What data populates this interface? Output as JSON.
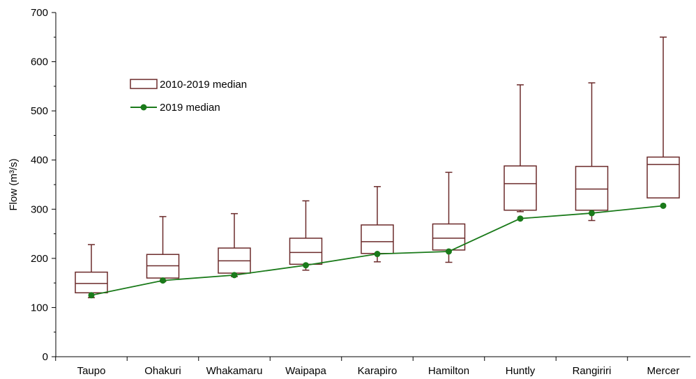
{
  "chart_data": {
    "type": "box",
    "ylabel": "Flow (m³/s)",
    "ylim": [
      0,
      700
    ],
    "yticks": [
      0,
      100,
      200,
      300,
      400,
      500,
      600,
      700
    ],
    "categories": [
      "Taupo",
      "Ohakuri",
      "Whakamaru",
      "Waipapa",
      "Karapiro",
      "Hamilton",
      "Huntly",
      "Rangiriri",
      "Mercer"
    ],
    "boxes": {
      "name": "2010-2019 median",
      "color": "#6b2a2a",
      "whisker_low": [
        120,
        153,
        163,
        176,
        193,
        192,
        295,
        277,
        325
      ],
      "q1": [
        130,
        160,
        170,
        188,
        210,
        217,
        298,
        298,
        323
      ],
      "median": [
        149,
        185,
        195,
        212,
        234,
        241,
        352,
        341,
        391
      ],
      "q3": [
        172,
        208,
        221,
        241,
        268,
        270,
        388,
        387,
        406
      ],
      "whisker_high": [
        228,
        285,
        291,
        317,
        346,
        375,
        553,
        557,
        650
      ]
    },
    "line": {
      "name": "2019 median",
      "color": "#1a7a1a",
      "values": [
        125,
        155,
        166,
        186,
        209,
        214,
        281,
        292,
        307
      ]
    },
    "grid": false,
    "legend": "top-left"
  }
}
